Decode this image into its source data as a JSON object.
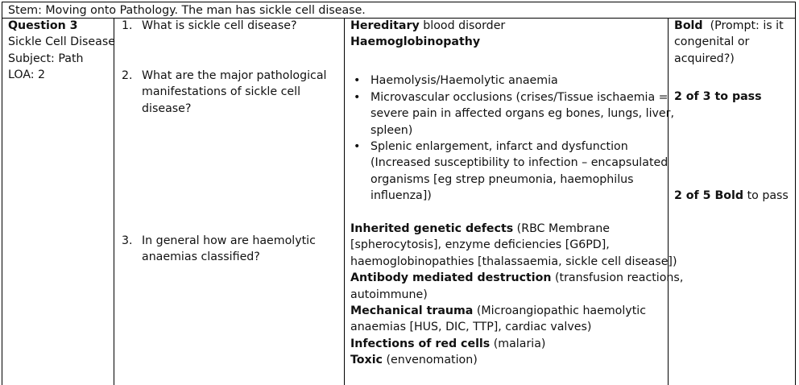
{
  "stem": "Stem: Moving onto Pathology. The man has sickle cell disease.",
  "left_col": {
    "title": "Question 3",
    "topic": "Sickle Cell Disease",
    "subject": "Subject: Path",
    "loa": "LOA:  2"
  },
  "questions": [
    {
      "num": "1.",
      "lines": [
        "What is sickle cell disease?"
      ]
    },
    {
      "num": "2.",
      "lines": [
        "What are the major pathological",
        "manifestations of sickle cell",
        "disease?"
      ]
    },
    {
      "num": "3.",
      "lines": [
        "In general how are haemolytic",
        "anaemias classified?"
      ]
    }
  ],
  "answers": {
    "a1_bold": "Hereditary",
    "a1_rest": " blood disorder",
    "a1_line2": "Haemoglobinopathy",
    "bullets": [
      {
        "lines": [
          "Haemolysis/Haemolytic anaemia"
        ]
      },
      {
        "lines": [
          "Microvascular occlusions (crises/Tissue ischaemia =",
          "severe pain in affected organs eg bones, lungs, liver,",
          "spleen)"
        ]
      },
      {
        "lines": [
          "Splenic enlargement, infarct and dysfunction",
          "(Increased susceptibility to infection – encapsulated",
          "organisms [eg strep pneumonia, haemophilus",
          "influenza])"
        ]
      }
    ],
    "a3": {
      "inherited_bold": "Inherited genetic defects",
      "inherited_rest": " (RBC Membrane",
      "inherited_l2": "[spherocytosis], enzyme deficiencies [G6PD],",
      "inherited_l3": "haemoglobinopathies [thalassaemia, sickle cell disease])",
      "antibody_bold": "Antibody mediated destruction",
      "antibody_rest": " (transfusion reactions,",
      "antibody_l2": "autoimmune)",
      "mech_bold": "Mechanical trauma",
      "mech_rest": " (Microangiopathic haemolytic",
      "mech_l2": "anaemias [HUS, DIC, TTP], cardiac valves)",
      "infect_bold": "Infections of red cells",
      "infect_rest": " (malaria)",
      "toxic_bold": "Toxic",
      "toxic_rest": " (envenomation)"
    }
  },
  "marking": {
    "bold_label": "Bold",
    "prompt_l1": "  (Prompt: is it",
    "prompt_l2": "congenital or",
    "prompt_l3": "acquired?)",
    "pass1": "2 of 3 to pass",
    "pass2_bold": "2 of 5 Bold",
    "pass2_rest": " to pass"
  }
}
